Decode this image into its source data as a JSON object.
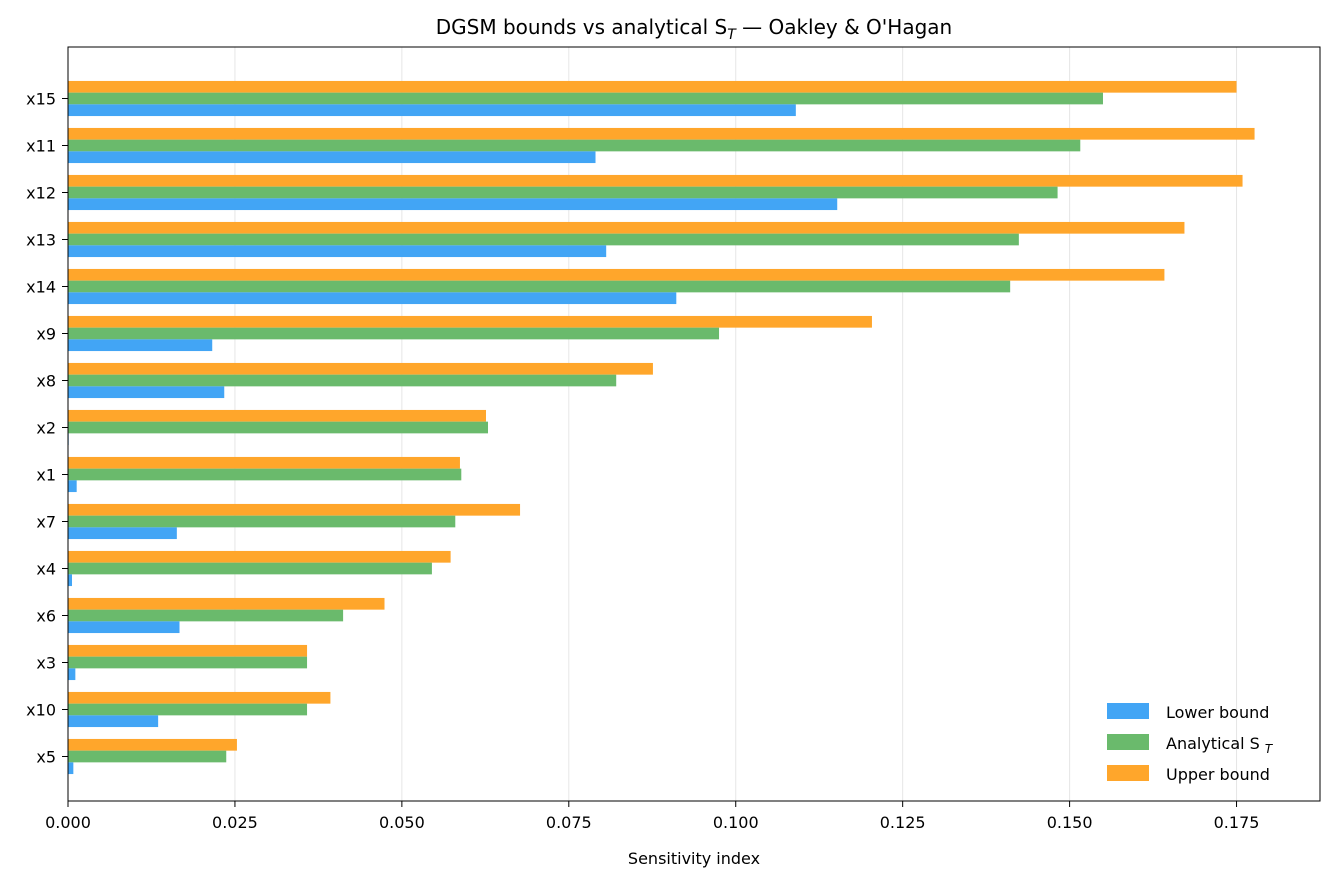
{
  "chart_data": {
    "type": "bar",
    "orientation": "horizontal",
    "title": "DGSM bounds vs analytical S",
    "title_subscript": "T",
    "title_suffix": " — Oakley & O'Hagan",
    "xlabel": "Sensitivity index",
    "ylabel": "",
    "xlim": [
      0,
      0.1875
    ],
    "xticks": [
      0.0,
      0.025,
      0.05,
      0.075,
      0.1,
      0.125,
      0.15,
      0.175
    ],
    "xtick_labels": [
      "0.000",
      "0.025",
      "0.050",
      "0.075",
      "0.100",
      "0.125",
      "0.150",
      "0.175"
    ],
    "grid": "x",
    "legend_position": "bottom-right",
    "categories": [
      "x15",
      "x11",
      "x12",
      "x13",
      "x14",
      "x9",
      "x8",
      "x2",
      "x1",
      "x7",
      "x4",
      "x6",
      "x3",
      "x10",
      "x5"
    ],
    "series": [
      {
        "name": "Upper bound",
        "color": "#ffa62b",
        "values": [
          0.175,
          0.1777,
          0.1759,
          0.1672,
          0.1642,
          0.1204,
          0.0876,
          0.0626,
          0.0587,
          0.0677,
          0.0573,
          0.0474,
          0.0358,
          0.0393,
          0.0253
        ]
      },
      {
        "name": "Analytical S",
        "name_subscript": "T",
        "color": "#6aba6c",
        "values": [
          0.155,
          0.1516,
          0.1482,
          0.1424,
          0.1411,
          0.0975,
          0.0821,
          0.0629,
          0.0589,
          0.058,
          0.0545,
          0.0412,
          0.0358,
          0.0358,
          0.0237
        ]
      },
      {
        "name": "Lower bound",
        "color": "#42a5f5",
        "values": [
          0.109,
          0.079,
          0.1152,
          0.0806,
          0.0911,
          0.0216,
          0.0234,
          0.0001,
          0.0013,
          0.0163,
          0.0006,
          0.0167,
          0.0011,
          0.0135,
          0.0008
        ]
      }
    ],
    "legend_order": [
      "Lower bound",
      "Analytical S",
      "Upper bound"
    ]
  }
}
